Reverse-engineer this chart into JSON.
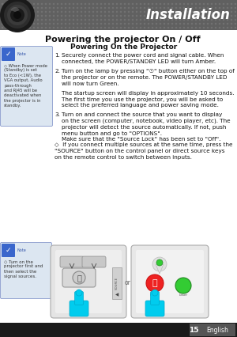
{
  "title": "Installation",
  "section_title": "Powering the projector On / Off",
  "subsection_title": "Powering On the Projector",
  "bg_color": "#f0f0f0",
  "header_bg_left": "#4a4a4a",
  "header_bg_right": "#6a6a6a",
  "header_text_color": "#ffffff",
  "footer_bg": "#222222",
  "footer_text_color": "#ffffff",
  "page_number": "15",
  "page_lang": "English",
  "body_text_color": "#222222",
  "note_bg": "#dce6f1",
  "note_border": "#5577cc",
  "checkmark_bg": "#3a66cc",
  "item1_text": "Securely connect the power cord and signal cable. When\nconnected, the POWER/STANDBY LED will turn Amber.",
  "item2_text": "Turn on the lamp by pressing \"☉\" button either on the top of\nthe projector or on the remote. The POWER/STANDBY LED\nwill now turn Green.",
  "item2b_text": "The startup screen will display in approximately 10 seconds.\nThe first time you use the projector, you will be asked to\nselect the preferred language and power saving mode.",
  "item3_text": "Turn on and connect the source that you want to display\non the screen (computer, notebook, video player, etc). The\nprojector will detect the source automatically. If not, push\nmenu button and go to \"OPTIONS\".\nMake sure that the \"Source Lock\" has been set to \"Off\".",
  "note1_text": "When Power mode\n(Standby) is set\nto Eco (<1W), the\nVGA output, Audio\npass-through\nand RJ45 will be\ndeactivated when\nthe projector is in\nstandby.",
  "note2_text": "Turn on the\nprojector first and\nthen select the\nsignal sources.",
  "tip_text": "If you connect multiple sources at the same time, press the\n\"SOURCE\" button on the control panel or direct source keys\non the remote control to switch between inputs."
}
